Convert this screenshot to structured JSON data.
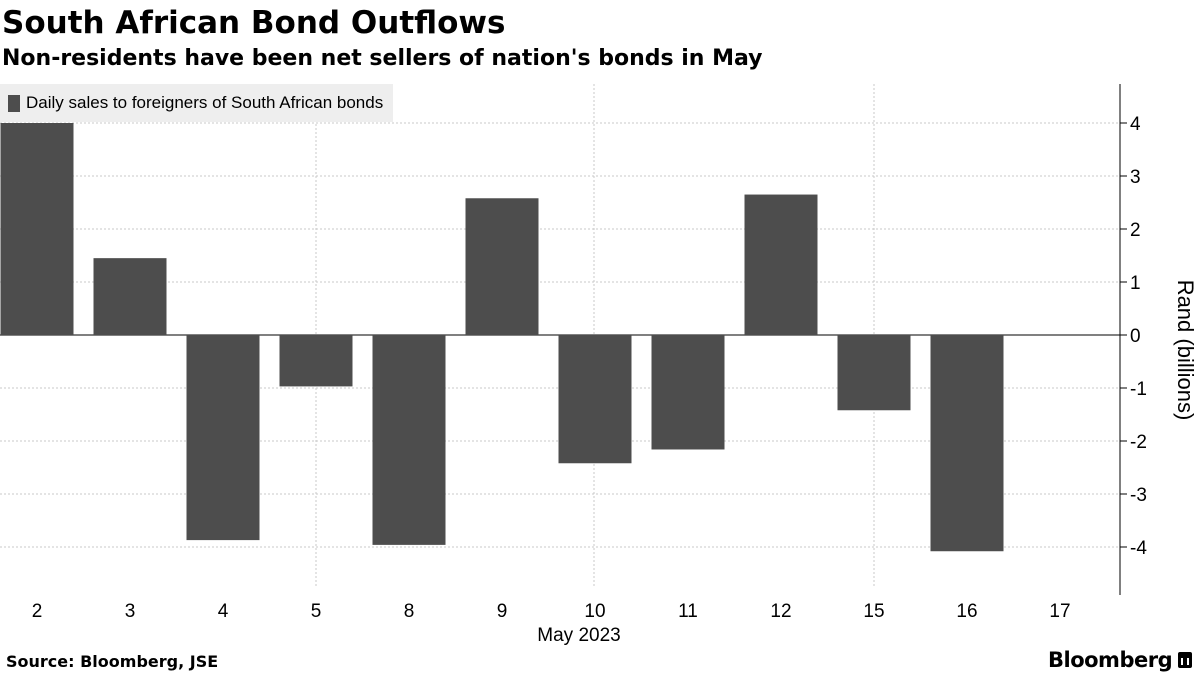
{
  "header": {
    "title": "South African Bond Outflows",
    "subtitle": "Non-residents have been net sellers of nation's bonds in May"
  },
  "footer": {
    "source": "Source: Bloomberg, JSE",
    "brand": "Bloomberg"
  },
  "colors": {
    "bar": "#4d4d4d",
    "grid": "#c8c8c8",
    "legend_bg": "#eeeeee"
  },
  "chart_data": {
    "type": "bar",
    "categories": [
      "2",
      "3",
      "4",
      "5",
      "8",
      "9",
      "10",
      "11",
      "12",
      "15",
      "16",
      "17"
    ],
    "series": [
      {
        "name": "Daily sales to foreigners of South African bonds",
        "values": [
          4.0,
          1.45,
          -3.87,
          -0.97,
          -3.96,
          2.58,
          -2.42,
          -2.16,
          2.65,
          -1.42,
          -4.08,
          null
        ]
      }
    ],
    "xlabel": "May 2023",
    "ylabel": "Rand (billions)",
    "ylim": [
      -4.8,
      4.8
    ],
    "yticks": [
      4,
      3,
      2,
      1,
      0,
      -1,
      -2,
      -3,
      -4
    ],
    "y_axis_side": "right",
    "grid": true,
    "legend_position": "top-left"
  }
}
